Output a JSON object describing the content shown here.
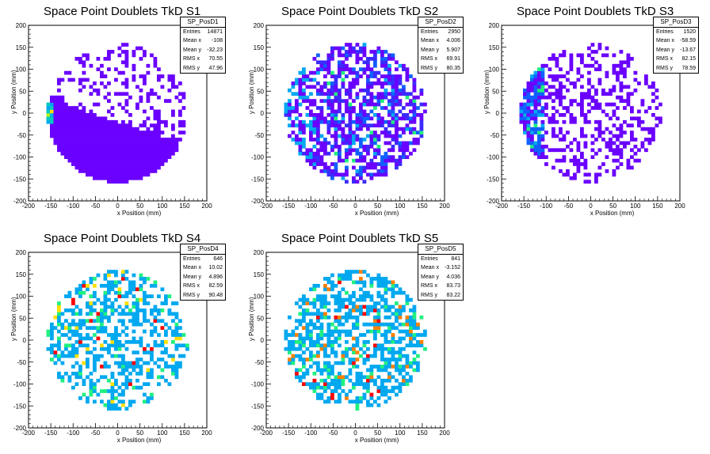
{
  "chart_data": [
    {
      "type": "heatmap",
      "title": "Space Point Doublets TkD S1",
      "xlabel": "x Position (mm)",
      "ylabel": "y Position (mm)",
      "xlim": [
        -200,
        200
      ],
      "ylim": [
        -200,
        200
      ],
      "xticks": [
        "-200",
        "-150",
        "-100",
        "-50",
        "0",
        "50",
        "100",
        "150",
        "200"
      ],
      "yticks": [
        "-200",
        "-150",
        "-100",
        "-50",
        "0",
        "50",
        "100",
        "150",
        "200"
      ],
      "stats": {
        "name": "SP_PosD1",
        "entries": "14871",
        "mean_x": "-108",
        "mean_y": "-32.23",
        "rms_x": "70.55",
        "rms_y": "47.96"
      },
      "pattern": "s1"
    },
    {
      "type": "heatmap",
      "title": "Space Point Doublets TkD S2",
      "xlabel": "x Position (mm)",
      "ylabel": "y Position (mm)",
      "xlim": [
        -200,
        200
      ],
      "ylim": [
        -200,
        200
      ],
      "xticks": [
        "-200",
        "-150",
        "-100",
        "-50",
        "0",
        "50",
        "100",
        "150",
        "200"
      ],
      "yticks": [
        "-200",
        "-150",
        "-100",
        "-50",
        "0",
        "50",
        "100",
        "150",
        "200"
      ],
      "stats": {
        "name": "SP_PosD2",
        "entries": "2950",
        "mean_x": "4.006",
        "mean_y": "5.907",
        "rms_x": "69.91",
        "rms_y": "80.35"
      },
      "pattern": "s2"
    },
    {
      "type": "heatmap",
      "title": "Space Point Doublets TkD S3",
      "xlabel": "x Position (mm)",
      "ylabel": "y Position (mm)",
      "xlim": [
        -200,
        200
      ],
      "ylim": [
        -200,
        200
      ],
      "xticks": [
        "-200",
        "-150",
        "-100",
        "-50",
        "0",
        "50",
        "100",
        "150",
        "200"
      ],
      "yticks": [
        "-200",
        "-150",
        "-100",
        "-50",
        "0",
        "50",
        "100",
        "150",
        "200"
      ],
      "stats": {
        "name": "SP_PosD3",
        "entries": "1520",
        "mean_x": "-58.59",
        "mean_y": "-13.67",
        "rms_x": "82.15",
        "rms_y": "78.59"
      },
      "pattern": "s3"
    },
    {
      "type": "heatmap",
      "title": "Space Point Doublets TkD S4",
      "xlabel": "x Position (mm)",
      "ylabel": "y Position (mm)",
      "xlim": [
        -200,
        200
      ],
      "ylim": [
        -200,
        200
      ],
      "xticks": [
        "-200",
        "-150",
        "-100",
        "-50",
        "0",
        "50",
        "100",
        "150",
        "200"
      ],
      "yticks": [
        "-200",
        "-150",
        "-100",
        "-50",
        "0",
        "50",
        "100",
        "150",
        "200"
      ],
      "stats": {
        "name": "SP_PosD4",
        "entries": "646",
        "mean_x": "10.02",
        "mean_y": "4.896",
        "rms_x": "82.59",
        "rms_y": "90.48"
      },
      "pattern": "s4"
    },
    {
      "type": "heatmap",
      "title": "Space Point Doublets TkD S5",
      "xlabel": "x Position (mm)",
      "ylabel": "y Position (mm)",
      "xlim": [
        -200,
        200
      ],
      "ylim": [
        -200,
        200
      ],
      "xticks": [
        "-200",
        "-150",
        "-100",
        "-50",
        "0",
        "50",
        "100",
        "150",
        "200"
      ],
      "yticks": [
        "-200",
        "-150",
        "-100",
        "-50",
        "0",
        "50",
        "100",
        "150",
        "200"
      ],
      "stats": {
        "name": "SP_PosD5",
        "entries": "841",
        "mean_x": "-3.152",
        "mean_y": "4.036",
        "rms_x": "83.73",
        "rms_y": "83.22"
      },
      "pattern": "s5"
    }
  ],
  "labels": {
    "entries": "Entries",
    "mean_x": "Mean x",
    "mean_y": "Mean y",
    "rms_x": "RMS x",
    "rms_y": "RMS y"
  },
  "palette": [
    "#6a00ff",
    "#3a2cff",
    "#1060ff",
    "#00a8f0",
    "#00c8c0",
    "#20f080",
    "#b0f020",
    "#ffe000",
    "#ff8000",
    "#ff0000"
  ]
}
